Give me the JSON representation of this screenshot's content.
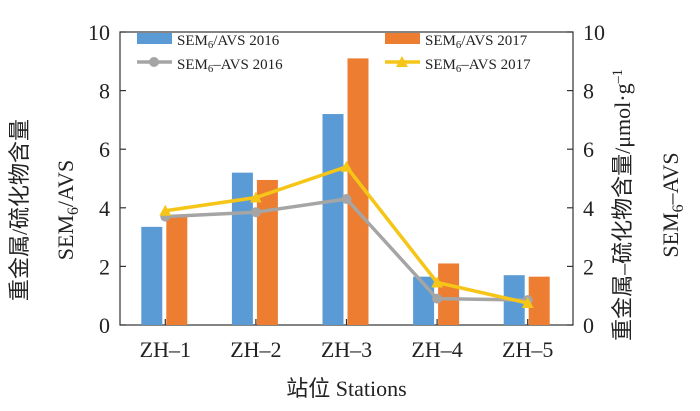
{
  "chart_data": {
    "type": "bar",
    "categories": [
      "ZH–1",
      "ZH–2",
      "ZH–3",
      "ZH–4",
      "ZH–5"
    ],
    "bar_series": [
      {
        "name": "SEM",
        "sub": "6",
        "suffix": "/AVS 2016",
        "color": "#5B9BD5",
        "values": [
          3.35,
          5.2,
          7.2,
          1.65,
          1.7
        ]
      },
      {
        "name": "SEM",
        "sub": "6",
        "suffix": "/AVS 2017",
        "color": "#ED7D31",
        "values": [
          3.75,
          4.95,
          9.1,
          2.1,
          1.65
        ]
      }
    ],
    "line_series": [
      {
        "name": "SEM",
        "sub": "6",
        "suffix": "–AVS 2016",
        "color": "#A5A5A5",
        "marker": "circle",
        "values": [
          3.7,
          3.85,
          4.3,
          0.9,
          0.85
        ]
      },
      {
        "name": "SEM",
        "sub": "6",
        "suffix": "–AVS 2017",
        "color": "#F5C518",
        "marker": "triangle",
        "values": [
          3.9,
          4.35,
          5.4,
          1.45,
          0.75
        ]
      }
    ],
    "y_left": {
      "min": 0,
      "max": 10,
      "ticks": [
        0,
        2,
        4,
        6,
        8,
        10
      ]
    },
    "y_right": {
      "min": 0,
      "max": 10,
      "ticks": [
        0,
        2,
        4,
        6,
        8,
        10
      ]
    },
    "xlabel": "站位 Stations",
    "ylabel_left_cn": "重金属/硫化物含量",
    "ylabel_left_en": {
      "name": "SEM",
      "sub": "6",
      "suffix": "/AVS"
    },
    "ylabel_right_cn": "重金属–硫化物含量/μmol·g",
    "ylabel_right_sup": "–1",
    "ylabel_right_en": {
      "name": "SEM",
      "sub": "6",
      "suffix": "–AVS"
    }
  }
}
